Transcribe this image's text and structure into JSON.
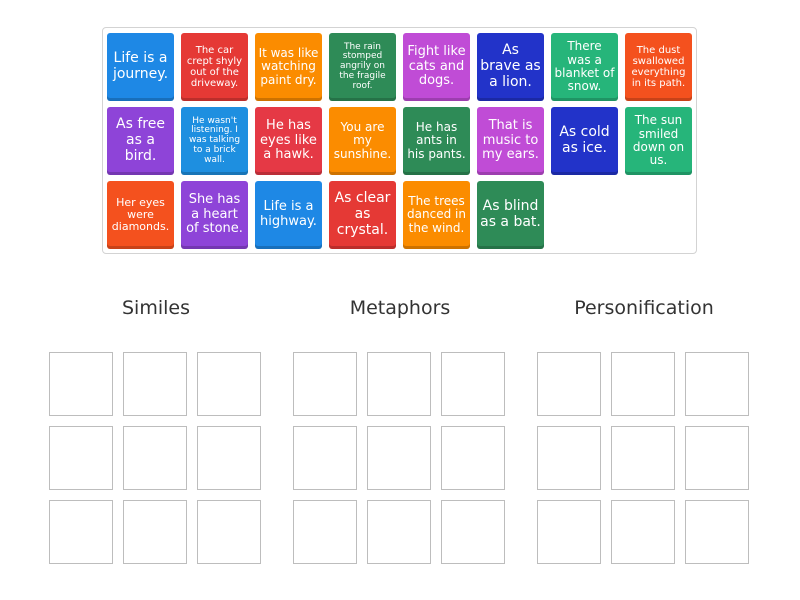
{
  "cards": [
    {
      "text": "Life is a journey.",
      "color": "#1e88e5"
    },
    {
      "text": "The car crept shyly out of the driveway.",
      "color": "#e53935"
    },
    {
      "text": "It was like watching paint dry.",
      "color": "#fb8c00"
    },
    {
      "text": "The rain stomped angrily on the fragile roof.",
      "color": "#2e8b57"
    },
    {
      "text": "Fight like cats and dogs.",
      "color": "#c04cd6"
    },
    {
      "text": "As brave as a lion.",
      "color": "#2233c9"
    },
    {
      "text": "There was a blanket of snow.",
      "color": "#26b57a"
    },
    {
      "text": "The dust swallowed everything in its path.",
      "color": "#f4511e"
    },
    {
      "text": "As free as a bird.",
      "color": "#8e44d8"
    },
    {
      "text": "He wasn't listening. I was talking to a brick wall.",
      "color": "#1e8fe0"
    },
    {
      "text": "He has eyes like a hawk.",
      "color": "#e53945"
    },
    {
      "text": "You are my sunshine.",
      "color": "#fb8c00"
    },
    {
      "text": "He has ants in his pants.",
      "color": "#2e8b57"
    },
    {
      "text": "That is music to my ears.",
      "color": "#c04cd6"
    },
    {
      "text": "As cold as ice.",
      "color": "#2233c9"
    },
    {
      "text": "The sun smiled down on us.",
      "color": "#26b57a"
    },
    {
      "text": "Her eyes were diamonds.",
      "color": "#f4511e"
    },
    {
      "text": "She has a heart of stone.",
      "color": "#8e44d8"
    },
    {
      "text": "Life is a highway.",
      "color": "#1e88e5"
    },
    {
      "text": "As clear as crystal.",
      "color": "#e53935"
    },
    {
      "text": "The trees danced in the wind.",
      "color": "#fb8c00"
    },
    {
      "text": "As blind as a bat.",
      "color": "#2e8b57"
    }
  ],
  "categories": [
    {
      "title": "Similes"
    },
    {
      "title": "Metaphors"
    },
    {
      "title": "Personification"
    }
  ]
}
